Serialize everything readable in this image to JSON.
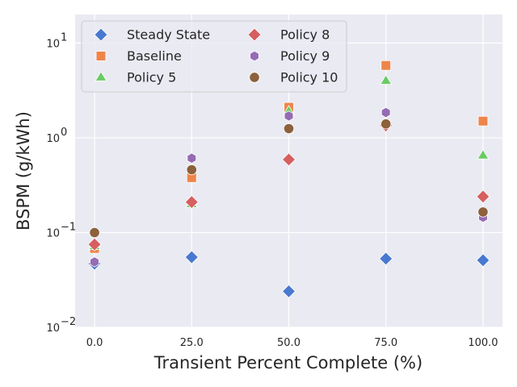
{
  "chart_data": {
    "type": "scatter",
    "title": "",
    "xlabel": "Transient Percent Complete (%)",
    "ylabel": "BSPM (g/kWh)",
    "xscale": "linear",
    "yscale": "log",
    "xlim": [
      -5,
      105
    ],
    "ylim": [
      0.01,
      20
    ],
    "x_ticks": [
      0,
      25,
      50,
      75,
      100
    ],
    "x_tick_labels": [
      "0.0",
      "25.0",
      "50.0",
      "75.0",
      "100.0"
    ],
    "y_ticks": [
      {
        "value": 0.01,
        "base": "10",
        "exp": "−2"
      },
      {
        "value": 0.1,
        "base": "10",
        "exp": "−1"
      },
      {
        "value": 1,
        "base": "10",
        "exp": "0"
      },
      {
        "value": 10,
        "base": "10",
        "exp": "1"
      }
    ],
    "grid": true,
    "legend_position": "upper-left",
    "series": [
      {
        "name": "Steady State",
        "marker": "diamond",
        "color": "#4878d0",
        "x": [
          0,
          25,
          50,
          75,
          100
        ],
        "y": [
          0.047,
          0.055,
          0.024,
          0.053,
          0.051
        ]
      },
      {
        "name": "Baseline",
        "marker": "square",
        "color": "#ee854a",
        "x": [
          0,
          25,
          50,
          75,
          100
        ],
        "y": [
          0.068,
          0.38,
          2.1,
          5.8,
          1.5
        ]
      },
      {
        "name": "Policy 5",
        "marker": "triangle",
        "color": "#6acc64",
        "x": [
          0,
          25,
          50,
          75,
          100
        ],
        "y": [
          0.072,
          0.2,
          1.9,
          4.0,
          0.65
        ]
      },
      {
        "name": "Policy 8",
        "marker": "diamond",
        "color": "#d65f5f",
        "x": [
          0,
          25,
          50,
          75,
          100
        ],
        "y": [
          0.075,
          0.21,
          0.59,
          1.35,
          0.24
        ]
      },
      {
        "name": "Policy 9",
        "marker": "hexagon",
        "color": "#956cb4",
        "x": [
          0,
          25,
          50,
          75,
          100
        ],
        "y": [
          0.049,
          0.61,
          1.7,
          1.85,
          0.145
        ]
      },
      {
        "name": "Policy 10",
        "marker": "circle",
        "color": "#8c613c",
        "x": [
          0,
          25,
          50,
          75,
          100
        ],
        "y": [
          0.1,
          0.46,
          1.25,
          1.4,
          0.165
        ]
      }
    ]
  }
}
